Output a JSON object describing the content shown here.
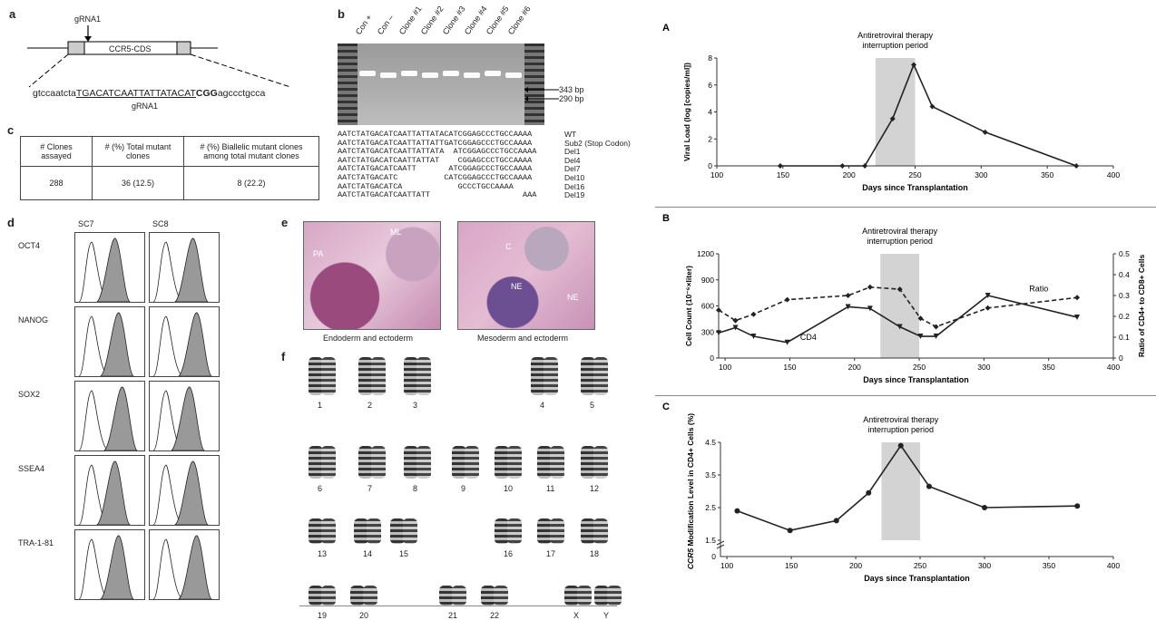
{
  "panel_a": {
    "label": "a",
    "grna_top": "gRNA1",
    "gene_box": "CCR5-CDS",
    "sequence_prefix": "gtccaatcta",
    "sequence_underlined": "TGACATCAATTATTATACAT",
    "sequence_pam": "CGG",
    "sequence_suffix": "agccctgcca",
    "grna_bottom": "gRNA1"
  },
  "panel_b": {
    "label": "b",
    "lanes": [
      "Con +",
      "Con –",
      "Clone #1",
      "Clone #2",
      "Clone #3",
      "Clone #4",
      "Clone #5",
      "Clone #6"
    ],
    "band_labels": [
      "343 bp",
      "290 bp"
    ],
    "sequences": [
      {
        "seq": "AATCTATGACATCAATTATTATACATCGGAGCCCTGCCAAAA",
        "label": "WT"
      },
      {
        "seq": "AATCTATGACATCAATTATTATTGATCGGAGCCCTGCCAAAA",
        "label": "Sub2 (Stop Codon)"
      },
      {
        "seq": "AATCTATGACATCAATTATTATA  ATCGGAGCCCTGCCAAAA",
        "label": "Del1"
      },
      {
        "seq": "AATCTATGACATCAATTATTAT    CGGAGCCCTGCCAAAA",
        "label": "Del4"
      },
      {
        "seq": "AATCTATGACATCAATT       ATCGGAGCCCTGCCAAAA",
        "label": "Del7"
      },
      {
        "seq": "AATCTATGACATC          CATCGGAGCCCTGCCAAAA",
        "label": "Del10"
      },
      {
        "seq": "AATCTATGACATCA            GCCCTGCCAAAA",
        "label": "Del16"
      },
      {
        "seq": "AATCTATGACATCAATTATT                    AAA",
        "label": "Del19"
      }
    ]
  },
  "panel_c": {
    "label": "c",
    "headers": [
      "# Clones assayed",
      "# (%) Total mutant clones",
      "# (%) Biallelic mutant clones among total mutant clones"
    ],
    "values": [
      "288",
      "36 (12.5)",
      "8 (22.2)"
    ]
  },
  "panel_d": {
    "label": "d",
    "columns": [
      "SC7",
      "SC8"
    ],
    "markers": [
      "OCT4",
      "NANOG",
      "SOX2",
      "SSEA4",
      "TRA-1-81"
    ]
  },
  "panel_e": {
    "label": "e",
    "left_caption": "Endoderm and ectoderm",
    "right_caption": "Mesoderm and ectoderm",
    "left_annotations": [
      "PA",
      "ML"
    ],
    "right_annotations": [
      "C",
      "NE",
      "NE"
    ]
  },
  "panel_f": {
    "label": "f",
    "chromosomes": [
      "1",
      "2",
      "3",
      "4",
      "5",
      "6",
      "7",
      "8",
      "9",
      "10",
      "11",
      "12",
      "13",
      "14",
      "15",
      "16",
      "17",
      "18",
      "19",
      "20",
      "21",
      "22",
      "X",
      "Y"
    ]
  },
  "chart_data": [
    {
      "panel": "A",
      "type": "line",
      "xlabel": "Days since Transplantation",
      "ylabel": "Viral Load (log [copies/ml])",
      "xlim": [
        100,
        400
      ],
      "ylim": [
        0,
        8
      ],
      "xticks": [
        100,
        150,
        200,
        250,
        300,
        350,
        400
      ],
      "yticks": [
        0,
        2,
        4,
        6,
        8
      ],
      "shaded_label": "Antiretroviral therapy interruption period",
      "shaded_x": [
        220,
        250
      ],
      "series": [
        {
          "x": [
            148,
            195,
            212,
            233,
            249,
            263,
            303,
            372
          ],
          "y": [
            0,
            0,
            0,
            3.5,
            7.5,
            4.4,
            2.5,
            0
          ]
        }
      ]
    },
    {
      "panel": "B",
      "type": "line",
      "xlabel": "Days since Transplantation",
      "ylabel": "Cell Count (10⁻⁶×liter)",
      "y2label": "Ratio of CD4+ to CD8+ Cells",
      "xlim": [
        95,
        400
      ],
      "ylim": [
        0,
        1200
      ],
      "y2lim": [
        0,
        0.5
      ],
      "xticks": [
        100,
        150,
        200,
        250,
        300,
        350,
        400
      ],
      "yticks": [
        0,
        300,
        600,
        900,
        1200
      ],
      "y2ticks": [
        0.0,
        0.1,
        0.2,
        0.3,
        0.4,
        0.5
      ],
      "shaded_label": "Antiretroviral therapy interruption period",
      "shaded_x": [
        220,
        250
      ],
      "series": [
        {
          "name": "CD4",
          "axis": "left",
          "style": "solid",
          "x": [
            95,
            108,
            122,
            148,
            195,
            212,
            235,
            251,
            263,
            303,
            372
          ],
          "y": [
            290,
            350,
            250,
            180,
            590,
            570,
            360,
            250,
            250,
            720,
            470
          ]
        },
        {
          "name": "Ratio",
          "axis": "right",
          "style": "dashed",
          "x": [
            95,
            108,
            122,
            148,
            195,
            212,
            235,
            251,
            263,
            303,
            372
          ],
          "y": [
            0.23,
            0.18,
            0.21,
            0.28,
            0.3,
            0.34,
            0.33,
            0.19,
            0.15,
            0.24,
            0.29
          ]
        }
      ]
    },
    {
      "panel": "C",
      "type": "line",
      "xlabel": "Days since Transplantation",
      "ylabel_italic": "CCR5",
      "ylabel": " Modification Level in CD4+ Cells (%)",
      "xlim": [
        95,
        400
      ],
      "ylim": [
        1.5,
        4.5
      ],
      "xticks": [
        100,
        150,
        200,
        250,
        300,
        350,
        400
      ],
      "yticks": [
        1.5,
        2.5,
        3.5,
        4.5
      ],
      "y0label": "0",
      "shaded_label": "Antiretroviral therapy interruption period",
      "shaded_x": [
        220,
        250
      ],
      "series": [
        {
          "x": [
            108,
            149,
            185,
            210,
            235,
            257,
            300,
            372
          ],
          "y": [
            2.4,
            1.8,
            2.1,
            2.95,
            4.4,
            3.15,
            2.5,
            2.55
          ]
        }
      ]
    }
  ]
}
